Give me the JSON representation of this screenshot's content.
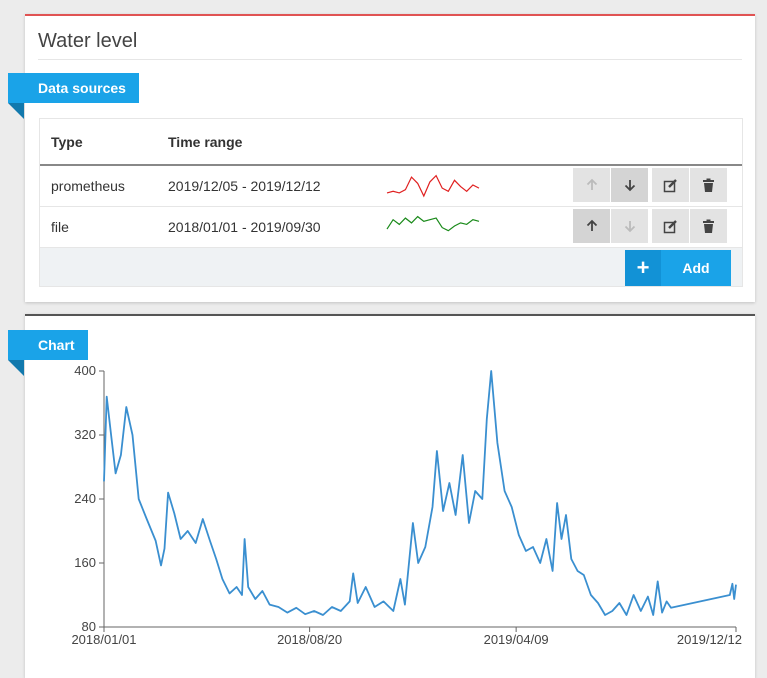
{
  "panel": {
    "title": "Water level",
    "sources_label": "Data sources",
    "chart_label": "Chart"
  },
  "table": {
    "headers": {
      "type": "Type",
      "time_range": "Time range"
    },
    "rows": [
      {
        "type": "prometheus",
        "time_range": "2019/12/05 - 2019/12/12",
        "spark_color": "#e02020"
      },
      {
        "type": "file",
        "time_range": "2018/01/01 - 2019/09/30",
        "spark_color": "#1a8a1a"
      }
    ],
    "add_label": "Add",
    "add_icon": "plus-icon"
  },
  "icons": {
    "up": "arrow-up-icon",
    "down": "arrow-down-icon",
    "edit": "edit-icon",
    "delete": "trash-icon"
  },
  "colors": {
    "accent": "#1aa3e8",
    "top_border": "#e05353",
    "line": "#3a8fd0"
  },
  "chart_data": {
    "type": "line",
    "title": "",
    "xlabel": "",
    "ylabel": "",
    "ylim": [
      80,
      400
    ],
    "yticks": [
      80,
      160,
      240,
      320,
      400
    ],
    "xticks": [
      "2018/01/01",
      "2018/08/20",
      "2019/04/09",
      "2019/12/12"
    ],
    "xlim": [
      "2018/01/01",
      "2019/12/12"
    ],
    "grid": false,
    "series": [
      {
        "points": [
          [
            "2018/01/01",
            262
          ],
          [
            "2018/01/04",
            368
          ],
          [
            "2018/01/09",
            320
          ],
          [
            "2018/01/14",
            272
          ],
          [
            "2018/01/20",
            295
          ],
          [
            "2018/01/26",
            355
          ],
          [
            "2018/02/02",
            320
          ],
          [
            "2018/02/09",
            240
          ],
          [
            "2018/02/18",
            215
          ],
          [
            "2018/02/28",
            188
          ],
          [
            "2018/03/06",
            157
          ],
          [
            "2018/03/10",
            178
          ],
          [
            "2018/03/14",
            248
          ],
          [
            "2018/03/21",
            222
          ],
          [
            "2018/03/28",
            190
          ],
          [
            "2018/04/05",
            200
          ],
          [
            "2018/04/14",
            185
          ],
          [
            "2018/04/22",
            215
          ],
          [
            "2018/04/30",
            188
          ],
          [
            "2018/05/07",
            165
          ],
          [
            "2018/05/14",
            140
          ],
          [
            "2018/05/22",
            122
          ],
          [
            "2018/05/30",
            130
          ],
          [
            "2018/06/05",
            120
          ],
          [
            "2018/06/08",
            190
          ],
          [
            "2018/06/12",
            130
          ],
          [
            "2018/06/20",
            115
          ],
          [
            "2018/06/28",
            125
          ],
          [
            "2018/07/06",
            108
          ],
          [
            "2018/07/16",
            105
          ],
          [
            "2018/07/26",
            98
          ],
          [
            "2018/08/05",
            104
          ],
          [
            "2018/08/15",
            96
          ],
          [
            "2018/08/25",
            100
          ],
          [
            "2018/09/04",
            95
          ],
          [
            "2018/09/14",
            105
          ],
          [
            "2018/09/24",
            100
          ],
          [
            "2018/10/04",
            112
          ],
          [
            "2018/10/08",
            147
          ],
          [
            "2018/10/13",
            110
          ],
          [
            "2018/10/22",
            130
          ],
          [
            "2018/11/01",
            105
          ],
          [
            "2018/11/11",
            112
          ],
          [
            "2018/11/22",
            100
          ],
          [
            "2018/11/30",
            140
          ],
          [
            "2018/12/05",
            108
          ],
          [
            "2018/12/14",
            210
          ],
          [
            "2018/12/20",
            160
          ],
          [
            "2018/12/28",
            180
          ],
          [
            "2019/01/05",
            230
          ],
          [
            "2019/01/10",
            300
          ],
          [
            "2019/01/17",
            225
          ],
          [
            "2019/01/24",
            260
          ],
          [
            "2019/01/31",
            220
          ],
          [
            "2019/02/08",
            295
          ],
          [
            "2019/02/15",
            210
          ],
          [
            "2019/02/22",
            250
          ],
          [
            "2019/03/02",
            240
          ],
          [
            "2019/03/07",
            340
          ],
          [
            "2019/03/12",
            400
          ],
          [
            "2019/03/19",
            310
          ],
          [
            "2019/03/27",
            250
          ],
          [
            "2019/04/04",
            230
          ],
          [
            "2019/04/12",
            195
          ],
          [
            "2019/04/20",
            175
          ],
          [
            "2019/04/28",
            180
          ],
          [
            "2019/05/06",
            160
          ],
          [
            "2019/05/13",
            190
          ],
          [
            "2019/05/20",
            150
          ],
          [
            "2019/05/25",
            235
          ],
          [
            "2019/05/30",
            190
          ],
          [
            "2019/06/04",
            220
          ],
          [
            "2019/06/10",
            165
          ],
          [
            "2019/06/17",
            150
          ],
          [
            "2019/06/24",
            145
          ],
          [
            "2019/07/02",
            120
          ],
          [
            "2019/07/10",
            110
          ],
          [
            "2019/07/18",
            95
          ],
          [
            "2019/07/26",
            100
          ],
          [
            "2019/08/03",
            110
          ],
          [
            "2019/08/11",
            95
          ],
          [
            "2019/08/19",
            120
          ],
          [
            "2019/08/27",
            100
          ],
          [
            "2019/09/04",
            118
          ],
          [
            "2019/09/10",
            95
          ],
          [
            "2019/09/15",
            137
          ],
          [
            "2019/09/20",
            98
          ],
          [
            "2019/09/25",
            112
          ],
          [
            "2019/09/30",
            104
          ],
          [
            "2019/12/05",
            120
          ],
          [
            "2019/12/08",
            134
          ],
          [
            "2019/12/10",
            115
          ],
          [
            "2019/12/12",
            133
          ]
        ]
      }
    ]
  },
  "sparks": [
    [
      2,
      3,
      2,
      4,
      12,
      8,
      0,
      9,
      13,
      5,
      3,
      10,
      6,
      3,
      7,
      5
    ],
    [
      5,
      11,
      8,
      12,
      9,
      13,
      10,
      11,
      12,
      6,
      4,
      7,
      9,
      8,
      11,
      10
    ]
  ]
}
